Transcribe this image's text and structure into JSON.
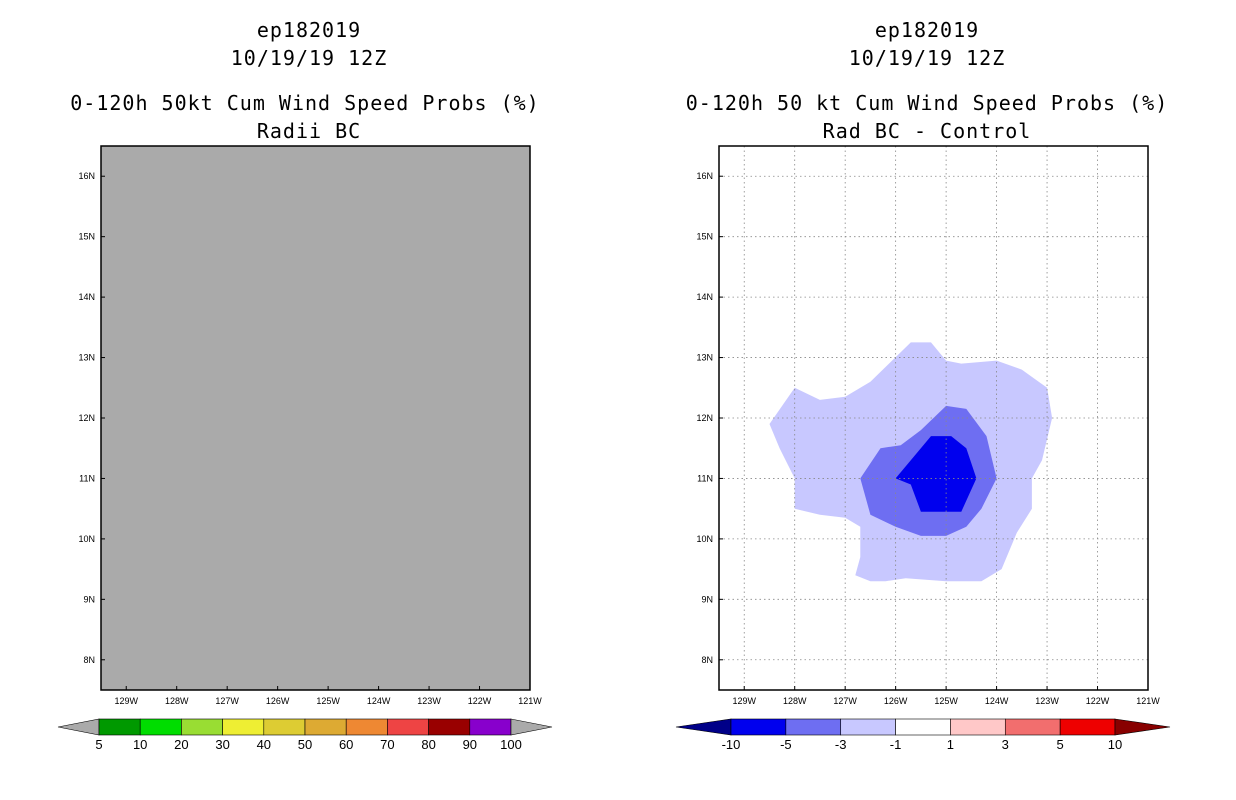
{
  "chart_data": [
    {
      "type": "heatmap",
      "storm_id": "ep182019",
      "datetime": "10/19/19 12Z",
      "title": "0-120h 50kt Cum Wind Speed Probs (%)",
      "subtitle": "Radii BC",
      "lon_ticks": [
        "129W",
        "128W",
        "127W",
        "126W",
        "125W",
        "124W",
        "123W",
        "122W",
        "121W"
      ],
      "lat_ticks": [
        "16N",
        "15N",
        "14N",
        "13N",
        "12N",
        "11N",
        "10N",
        "9N",
        "8N"
      ],
      "lon_range": [
        -129.5,
        -121
      ],
      "lat_range": [
        7.5,
        16.5
      ],
      "grid": false,
      "field_fill": "#aaaaaa",
      "field_note": "uniformly below 5%",
      "colorbar": {
        "levels": [
          "5",
          "10",
          "20",
          "30",
          "40",
          "50",
          "60",
          "70",
          "80",
          "90",
          "100"
        ],
        "colors": [
          "#009900",
          "#00dd00",
          "#99dd33",
          "#eeee33",
          "#ddcc33",
          "#ddaa33",
          "#ee8833",
          "#ee4444",
          "#990000",
          "#8800cc"
        ],
        "under_color": "#aaaaaa",
        "over_color": "#aaaaaa"
      }
    },
    {
      "type": "heatmap",
      "storm_id": "ep182019",
      "datetime": "10/19/19 12Z",
      "title": "0-120h 50 kt Cum Wind Speed Probs (%)",
      "subtitle": "Rad BC - Control",
      "lon_ticks": [
        "129W",
        "128W",
        "127W",
        "126W",
        "125W",
        "124W",
        "123W",
        "122W",
        "121W"
      ],
      "lat_ticks": [
        "16N",
        "15N",
        "14N",
        "13N",
        "12N",
        "11N",
        "10N",
        "9N",
        "8N"
      ],
      "lon_range": [
        -129.5,
        -121
      ],
      "lat_range": [
        7.5,
        16.5
      ],
      "grid": true,
      "contours": [
        {
          "level": "-3 to -1",
          "color": "#c8c8ff",
          "points": [
            [
              -128.5,
              11.9
            ],
            [
              -128.0,
              12.5
            ],
            [
              -127.5,
              12.3
            ],
            [
              -127.0,
              12.35
            ],
            [
              -126.5,
              12.6
            ],
            [
              -125.7,
              13.25
            ],
            [
              -125.3,
              13.25
            ],
            [
              -125.0,
              12.95
            ],
            [
              -124.7,
              12.9
            ],
            [
              -124.0,
              12.95
            ],
            [
              -123.5,
              12.8
            ],
            [
              -123.0,
              12.5
            ],
            [
              -122.9,
              12.0
            ],
            [
              -123.1,
              11.3
            ],
            [
              -123.3,
              11.0
            ],
            [
              -123.3,
              10.5
            ],
            [
              -123.6,
              10.1
            ],
            [
              -123.9,
              9.5
            ],
            [
              -124.3,
              9.3
            ],
            [
              -125.0,
              9.3
            ],
            [
              -125.8,
              9.35
            ],
            [
              -126.2,
              9.3
            ],
            [
              -126.5,
              9.3
            ],
            [
              -126.8,
              9.4
            ],
            [
              -126.7,
              9.7
            ],
            [
              -126.7,
              10.2
            ],
            [
              -127.0,
              10.35
            ],
            [
              -127.5,
              10.4
            ],
            [
              -128.0,
              10.5
            ],
            [
              -128.0,
              11.0
            ],
            [
              -128.3,
              11.5
            ]
          ]
        },
        {
          "level": "-5 to -3",
          "color": "#6e6ef2",
          "points": [
            [
              -125.5,
              11.8
            ],
            [
              -125.0,
              12.2
            ],
            [
              -124.6,
              12.15
            ],
            [
              -124.2,
              11.7
            ],
            [
              -124.0,
              11.0
            ],
            [
              -124.3,
              10.5
            ],
            [
              -124.6,
              10.2
            ],
            [
              -125.0,
              10.05
            ],
            [
              -125.5,
              10.05
            ],
            [
              -126.0,
              10.2
            ],
            [
              -126.5,
              10.4
            ],
            [
              -126.7,
              11.0
            ],
            [
              -126.3,
              11.5
            ],
            [
              -125.9,
              11.55
            ]
          ]
        },
        {
          "level": "-10 to -5",
          "color": "#0000ee",
          "points": [
            [
              -125.3,
              11.7
            ],
            [
              -124.9,
              11.7
            ],
            [
              -124.6,
              11.5
            ],
            [
              -124.4,
              11.0
            ],
            [
              -124.7,
              10.45
            ],
            [
              -125.2,
              10.45
            ],
            [
              -125.5,
              10.45
            ],
            [
              -125.7,
              10.9
            ],
            [
              -126.0,
              11.0
            ],
            [
              -125.7,
              11.3
            ]
          ]
        }
      ],
      "colorbar": {
        "levels": [
          "-10",
          "-5",
          "-3",
          "-1",
          "1",
          "3",
          "5",
          "10"
        ],
        "colors": [
          "#0000ee",
          "#6e6ef2",
          "#c8c8ff",
          "#ffffff",
          "#ffc8c8",
          "#f26e6e",
          "#ee0000"
        ],
        "under_color": "#000088",
        "over_color": "#880000"
      }
    }
  ]
}
